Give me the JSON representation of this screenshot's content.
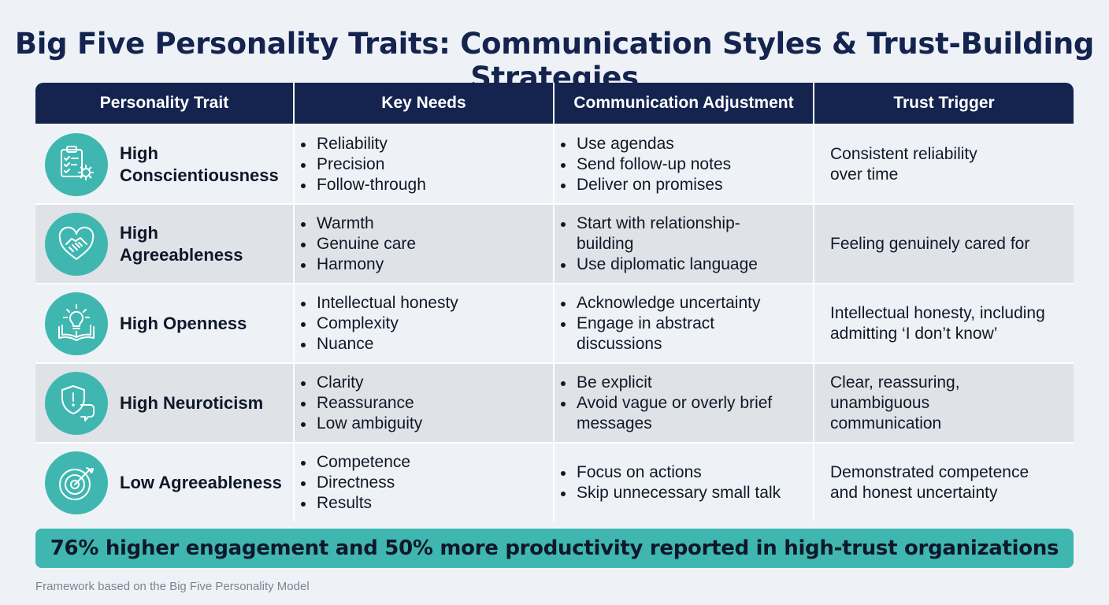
{
  "title": "Big Five Personality Traits: Communication Styles & Trust-Building Strategies",
  "headers": [
    "Personality Trait",
    "Key Needs",
    "Communication Adjustment",
    "Trust Trigger"
  ],
  "rows": [
    {
      "icon": "checklist-gear-icon",
      "trait_line1": "High",
      "trait_line2": "Conscientiousness",
      "needs": [
        "Reliability",
        "Precision",
        "Follow-through"
      ],
      "adjustments": [
        "Use agendas",
        "Send follow-up notes",
        "Deliver on promises"
      ],
      "trigger": "Consistent reliability over time"
    },
    {
      "icon": "heart-handshake-icon",
      "trait_line1": "High",
      "trait_line2": "Agreeableness",
      "needs": [
        "Warmth",
        "Genuine care",
        "Harmony"
      ],
      "adjustments": [
        "Start with relationship-building",
        "Use diplomatic language"
      ],
      "trigger": "Feeling genuinely cared for"
    },
    {
      "icon": "lightbulb-book-icon",
      "trait_line1": "High Openness",
      "trait_line2": "",
      "needs": [
        "Intellectual honesty",
        "Complexity",
        "Nuance"
      ],
      "adjustments": [
        "Acknowledge uncertainty",
        "Engage in abstract discussions"
      ],
      "trigger": "Intellectual honesty, including admitting ‘I don’t know’"
    },
    {
      "icon": "shield-chat-icon",
      "trait_line1": "High Neuroticism",
      "trait_line2": "",
      "needs": [
        "Clarity",
        "Reassurance",
        "Low ambiguity"
      ],
      "adjustments": [
        "Be explicit",
        "Avoid vague or overly brief messages"
      ],
      "trigger": "Clear, reassuring, unambiguous communication"
    },
    {
      "icon": "target-arrow-icon",
      "trait_line1": "Low Agreeableness",
      "trait_line2": "",
      "needs": [
        "Competence",
        "Directness",
        "Results"
      ],
      "adjustments": [
        "Focus on actions",
        "Skip unnecessary small talk"
      ],
      "trigger": "Demonstrated competence and honest uncertainty"
    }
  ],
  "banner": "76% higher engagement and 50% more productivity reported in high-trust organizations",
  "footnote": "Framework based on the Big Five Personality Model",
  "colors": {
    "navy": "#14244f",
    "teal": "#3fb7b0",
    "row_light": "#eef2f7",
    "row_dark": "#dfe2e7"
  }
}
